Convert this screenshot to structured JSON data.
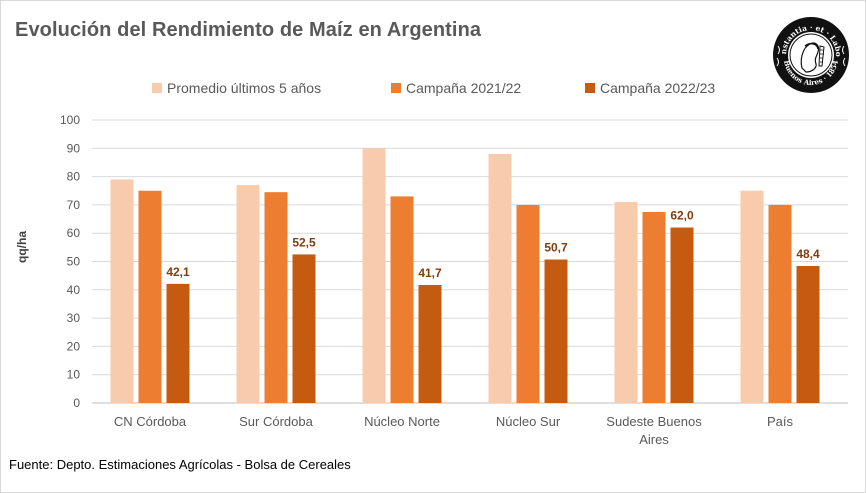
{
  "title": "Evolución del Rendimiento de Maíz en Argentina",
  "logo": {
    "icon": "bolsa-de-cereales-seal-logo",
    "motto": "Constantia · et · Labore",
    "place": "Buenos Aires · 1854"
  },
  "source": "Fuente: Depto. Estimaciones Agrícolas - Bolsa de Cereales",
  "colors": {
    "promedio": "#f8cbad",
    "campana_2122": "#ed7d31",
    "campana_2223": "#c55a11",
    "grid": "#d9d9d9",
    "text": "#595959",
    "data_label": "#843c0c"
  },
  "chart_data": {
    "type": "bar",
    "title": "Evolución del Rendimiento de Maíz en Argentina",
    "xlabel": "",
    "ylabel": "qq/ha",
    "ylim": [
      0,
      100
    ],
    "yticks": [
      0,
      10,
      20,
      30,
      40,
      50,
      60,
      70,
      80,
      90,
      100
    ],
    "grid": true,
    "legend_position": "top",
    "categories": [
      [
        "CN Córdoba"
      ],
      [
        "Sur Córdoba"
      ],
      [
        "Núcleo Norte"
      ],
      [
        "Núcleo Sur"
      ],
      [
        "Sudeste Buenos",
        "Aires"
      ],
      [
        "País"
      ]
    ],
    "series": [
      {
        "name": "Promedio últimos 5 años",
        "color": "#f8cbad",
        "values": [
          79,
          77,
          90,
          88,
          71,
          75
        ],
        "labels": null
      },
      {
        "name": "Campaña 2021/22",
        "color": "#ed7d31",
        "values": [
          75,
          74.5,
          73,
          70,
          67.5,
          70
        ],
        "labels": null
      },
      {
        "name": "Campaña 2022/23",
        "color": "#c55a11",
        "values": [
          42.1,
          52.5,
          41.7,
          50.7,
          62.0,
          48.4
        ],
        "labels": [
          "42,1",
          "52,5",
          "41,7",
          "50,7",
          "62,0",
          "48,4"
        ]
      }
    ]
  }
}
